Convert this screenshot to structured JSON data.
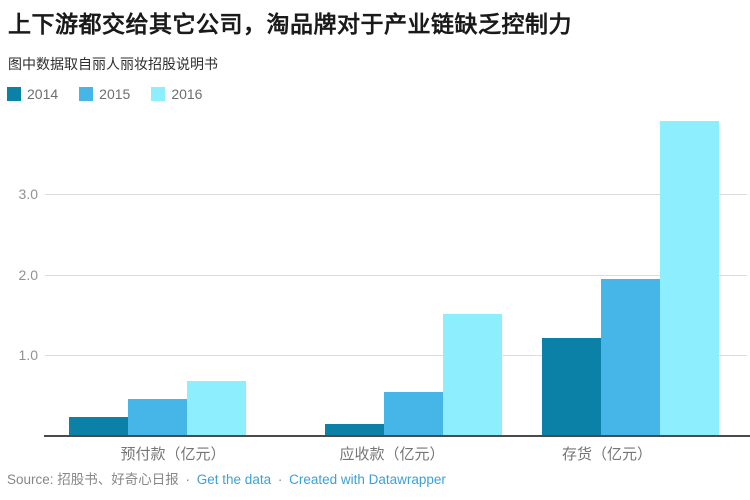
{
  "header": {
    "title": "上下游都交给其它公司，淘品牌对于产业链缺乏控制力",
    "subtitle": "图中数据取自丽人丽妆招股说明书"
  },
  "legend": {
    "items": [
      {
        "label": "2014",
        "color": "#0b81a7"
      },
      {
        "label": "2015",
        "color": "#46b6e9"
      },
      {
        "label": "2016",
        "color": "#8deffe"
      }
    ]
  },
  "chart_data": {
    "type": "bar",
    "title": "上下游都交给其它公司，淘品牌对于产业链缺乏控制力",
    "subtitle": "图中数据取自丽人丽妆招股说明书",
    "categories": [
      "预付款（亿元）",
      "应收款（亿元）",
      "存货（亿元）"
    ],
    "series": [
      {
        "name": "2014",
        "color": "#0b81a7",
        "values": [
          0.23,
          0.15,
          1.21
        ]
      },
      {
        "name": "2015",
        "color": "#46b6e9",
        "values": [
          0.46,
          0.54,
          1.95
        ]
      },
      {
        "name": "2016",
        "color": "#8deffe",
        "values": [
          0.68,
          1.51,
          3.9
        ]
      }
    ],
    "xlabel": "",
    "ylabel": "",
    "ylim": [
      0,
      4
    ],
    "yticks": [
      1.0,
      2.0,
      3.0
    ],
    "ytick_labels": [
      "1.0",
      "2.0",
      "3.0"
    ],
    "grid": true,
    "legend_position": "top-left"
  },
  "footer": {
    "source_text": "Source: 招股书、好奇心日报",
    "separator": "·",
    "links": [
      {
        "label": "Get the data"
      },
      {
        "label": "Created with Datawrapper"
      }
    ]
  },
  "colors": {
    "link": "#39a1da",
    "grid": "#dcdcdc",
    "axis": "#4a4a4a",
    "tick_label": "#919191",
    "category_label": "#767676",
    "legend_label": "#6e6e6e"
  }
}
